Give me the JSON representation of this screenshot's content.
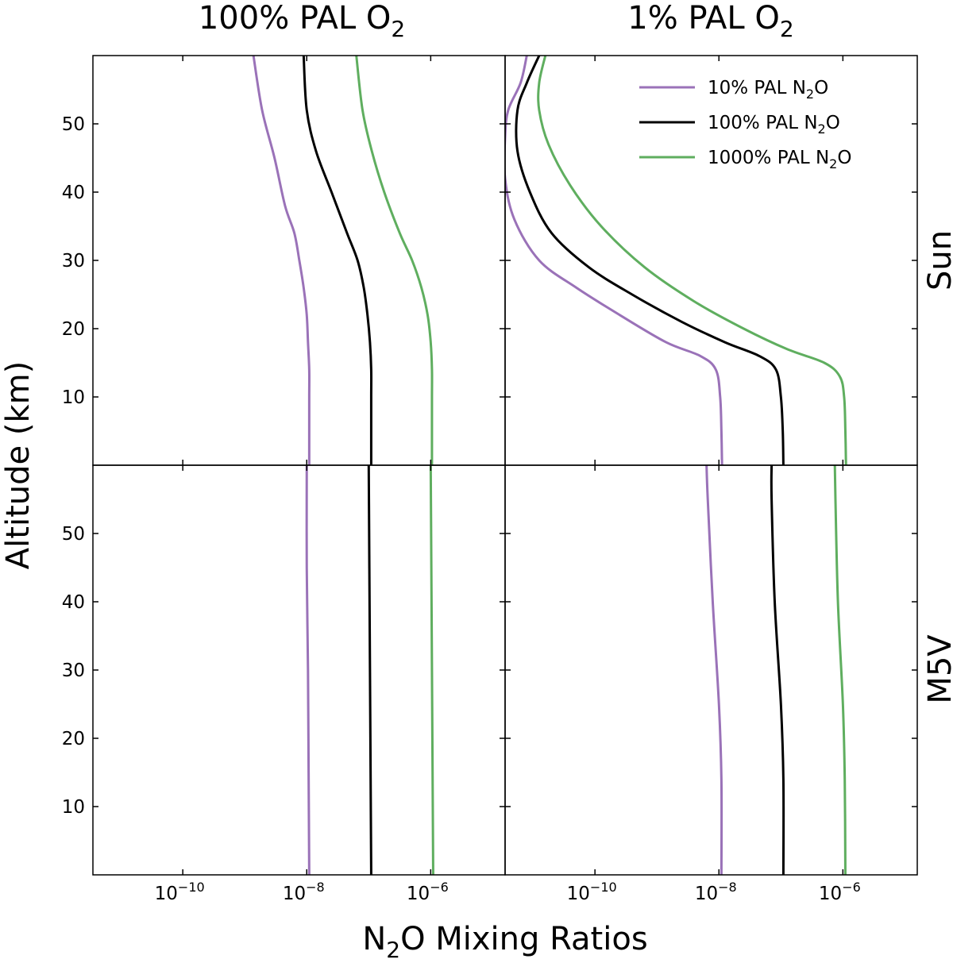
{
  "figure": {
    "column_titles": [
      {
        "text": "100% PAL O",
        "sub": "2"
      },
      {
        "text": "1% PAL O",
        "sub": "2"
      }
    ],
    "row_labels": [
      "Sun",
      "M5V"
    ],
    "ylabel": "Altitude (km)",
    "xlabel": {
      "pre": "N",
      "sub": "2",
      "post": "O Mixing Ratios"
    }
  },
  "colors": {
    "series_10": "#9a72b8",
    "series_100": "#000000",
    "series_1000": "#5fae5f"
  },
  "chart_data": {
    "type": "line",
    "xscale": "log",
    "xlim_exp": [
      -11.45,
      -4.8
    ],
    "ylim": [
      0,
      60
    ],
    "xticks": [
      {
        "exp": -10,
        "label": "10",
        "sup": "−10"
      },
      {
        "exp": -8,
        "label": "10",
        "sup": "−8"
      },
      {
        "exp": -6,
        "label": "10",
        "sup": "−6"
      }
    ],
    "yticks": [
      10,
      20,
      30,
      40,
      50
    ],
    "legend": {
      "location": "top-right of top-right panel",
      "entries": [
        {
          "key": "series_10",
          "text": "10% PAL N",
          "sub": "2",
          "post": "O"
        },
        {
          "key": "series_100",
          "text": "100% PAL N",
          "sub": "2",
          "post": "O"
        },
        {
          "key": "series_1000",
          "text": "1000% PAL N",
          "sub": "2",
          "post": "O"
        }
      ]
    },
    "panels": [
      {
        "id": "sun-100pct-o2",
        "row": 0,
        "col": 0,
        "series": [
          {
            "key": "series_10",
            "name": "10% PAL N2O",
            "log10_x": [
              -7.96,
              -7.96,
              -7.96,
              -7.96,
              -7.98,
              -8.0,
              -8.05,
              -8.12,
              -8.2,
              -8.35,
              -8.52,
              -8.72,
              -8.86
            ],
            "altitude_km": [
              0,
              5,
              10,
              14,
              18,
              22,
              26,
              30,
              34,
              38,
              45,
              52,
              60
            ]
          },
          {
            "key": "series_100",
            "name": "100% PAL N2O",
            "log10_x": [
              -6.96,
              -6.96,
              -6.96,
              -6.96,
              -6.98,
              -7.02,
              -7.08,
              -7.18,
              -7.35,
              -7.6,
              -7.85,
              -8.0,
              -8.05
            ],
            "altitude_km": [
              0,
              5,
              10,
              14,
              18,
              22,
              26,
              30,
              34,
              40,
              46,
              52,
              60
            ]
          },
          {
            "key": "series_1000",
            "name": "1000% PAL N2O",
            "log10_x": [
              -5.98,
              -5.98,
              -5.98,
              -5.98,
              -6.0,
              -6.05,
              -6.15,
              -6.3,
              -6.5,
              -6.75,
              -6.95,
              -7.1,
              -7.2
            ],
            "altitude_km": [
              0,
              5,
              10,
              14,
              18,
              22,
              26,
              30,
              34,
              40,
              46,
              52,
              60
            ]
          }
        ]
      },
      {
        "id": "sun-1pct-o2",
        "row": 0,
        "col": 1,
        "series": [
          {
            "key": "series_10",
            "name": "10% PAL N2O",
            "log10_x": [
              -7.95,
              -7.96,
              -7.98,
              -8.05,
              -8.3,
              -8.85,
              -9.6,
              -10.3,
              -10.9,
              -11.3,
              -11.45,
              -11.45,
              -11.4,
              -11.2,
              -11.1
            ],
            "altitude_km": [
              0,
              5,
              10,
              14,
              16,
              18,
              22,
              26,
              30,
              36,
              42,
              48,
              52,
              56,
              60
            ]
          },
          {
            "key": "series_100",
            "name": "100% PAL N2O",
            "log10_x": [
              -6.96,
              -6.97,
              -7.0,
              -7.08,
              -7.35,
              -7.9,
              -8.6,
              -9.4,
              -10.1,
              -10.7,
              -11.05,
              -11.25,
              -11.25,
              -11.1,
              -10.9
            ],
            "altitude_km": [
              0,
              5,
              10,
              14,
              16,
              18,
              21,
              25,
              29,
              34,
              40,
              46,
              52,
              56,
              60
            ]
          },
          {
            "key": "series_1000",
            "name": "1000% PAL N2O",
            "log10_x": [
              -5.95,
              -5.96,
              -5.98,
              -6.05,
              -6.3,
              -6.9,
              -7.6,
              -8.4,
              -9.2,
              -9.9,
              -10.4,
              -10.75,
              -10.9,
              -10.9,
              -10.8
            ],
            "altitude_km": [
              0,
              5,
              10,
              13,
              15,
              17,
              20,
              24,
              29,
              35,
              41,
              47,
              52,
              56,
              60
            ]
          }
        ]
      },
      {
        "id": "m5v-100pct-o2",
        "row": 1,
        "col": 0,
        "series": [
          {
            "key": "series_10",
            "name": "10% PAL N2O",
            "log10_x": [
              -7.96,
              -7.97,
              -7.98,
              -8.0,
              -8.0
            ],
            "altitude_km": [
              0,
              15,
              30,
              45,
              60
            ]
          },
          {
            "key": "series_100",
            "name": "100% PAL N2O",
            "log10_x": [
              -6.96,
              -6.97,
              -6.98,
              -6.99,
              -7.0
            ],
            "altitude_km": [
              0,
              15,
              30,
              45,
              60
            ]
          },
          {
            "key": "series_1000",
            "name": "1000% PAL N2O",
            "log10_x": [
              -5.96,
              -5.97,
              -5.98,
              -5.99,
              -6.0
            ],
            "altitude_km": [
              0,
              15,
              30,
              45,
              60
            ]
          }
        ]
      },
      {
        "id": "m5v-1pct-o2",
        "row": 1,
        "col": 1,
        "series": [
          {
            "key": "series_10",
            "name": "10% PAL N2O",
            "log10_x": [
              -7.96,
              -7.96,
              -8.0,
              -8.1,
              -8.18,
              -8.2
            ],
            "altitude_km": [
              0,
              14,
              25,
              40,
              55,
              60
            ]
          },
          {
            "key": "series_100",
            "name": "100% PAL N2O",
            "log10_x": [
              -6.96,
              -6.96,
              -7.0,
              -7.1,
              -7.15,
              -7.15
            ],
            "altitude_km": [
              0,
              14,
              25,
              40,
              55,
              60
            ]
          },
          {
            "key": "series_1000",
            "name": "1000% PAL N2O",
            "log10_x": [
              -5.96,
              -5.97,
              -6.0,
              -6.08,
              -6.12,
              -6.13
            ],
            "altitude_km": [
              0,
              14,
              25,
              40,
              55,
              60
            ]
          }
        ]
      }
    ]
  }
}
